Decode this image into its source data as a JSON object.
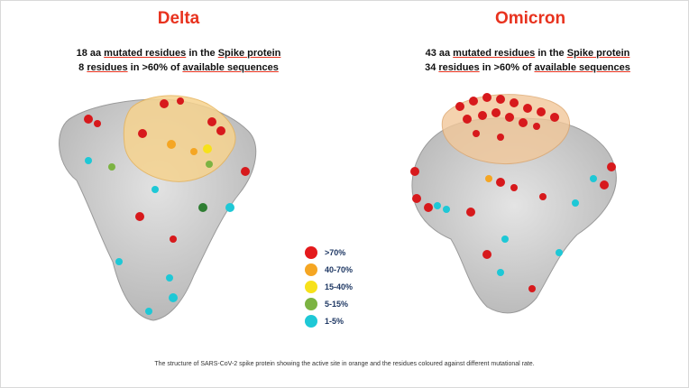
{
  "delta": {
    "title": "Delta",
    "line1": {
      "pre": "18 aa ",
      "u1": "mutated residues",
      "mid": " in the ",
      "u2": "Spike protein",
      "post": ""
    },
    "line2": {
      "pre": "8 ",
      "u1": "residues",
      "mid": " in >60% of ",
      "u2": "available sequences",
      "post": ""
    }
  },
  "omicron": {
    "title": "Omicron",
    "line1": {
      "pre": "43 aa ",
      "u1": "mutated residues",
      "mid": " in the ",
      "u2": "Spike protein",
      "post": ""
    },
    "line2": {
      "pre": "34 ",
      "u1": "residues",
      "mid": " in >60% of ",
      "u2": "available sequences",
      "post": ""
    }
  },
  "legend": [
    {
      "label": ">70%",
      "color": "#e41a1c"
    },
    {
      "label": "40-70%",
      "color": "#f5a623"
    },
    {
      "label": "15-40%",
      "color": "#f7e11b"
    },
    {
      "label": "5-15%",
      "color": "#7cb342"
    },
    {
      "label": "1-5%",
      "color": "#1ec8d6"
    }
  ],
  "caption": "The structure of SARS-CoV-2 spike protein showing the active site in orange and the residues coloured against different mutational rate."
}
